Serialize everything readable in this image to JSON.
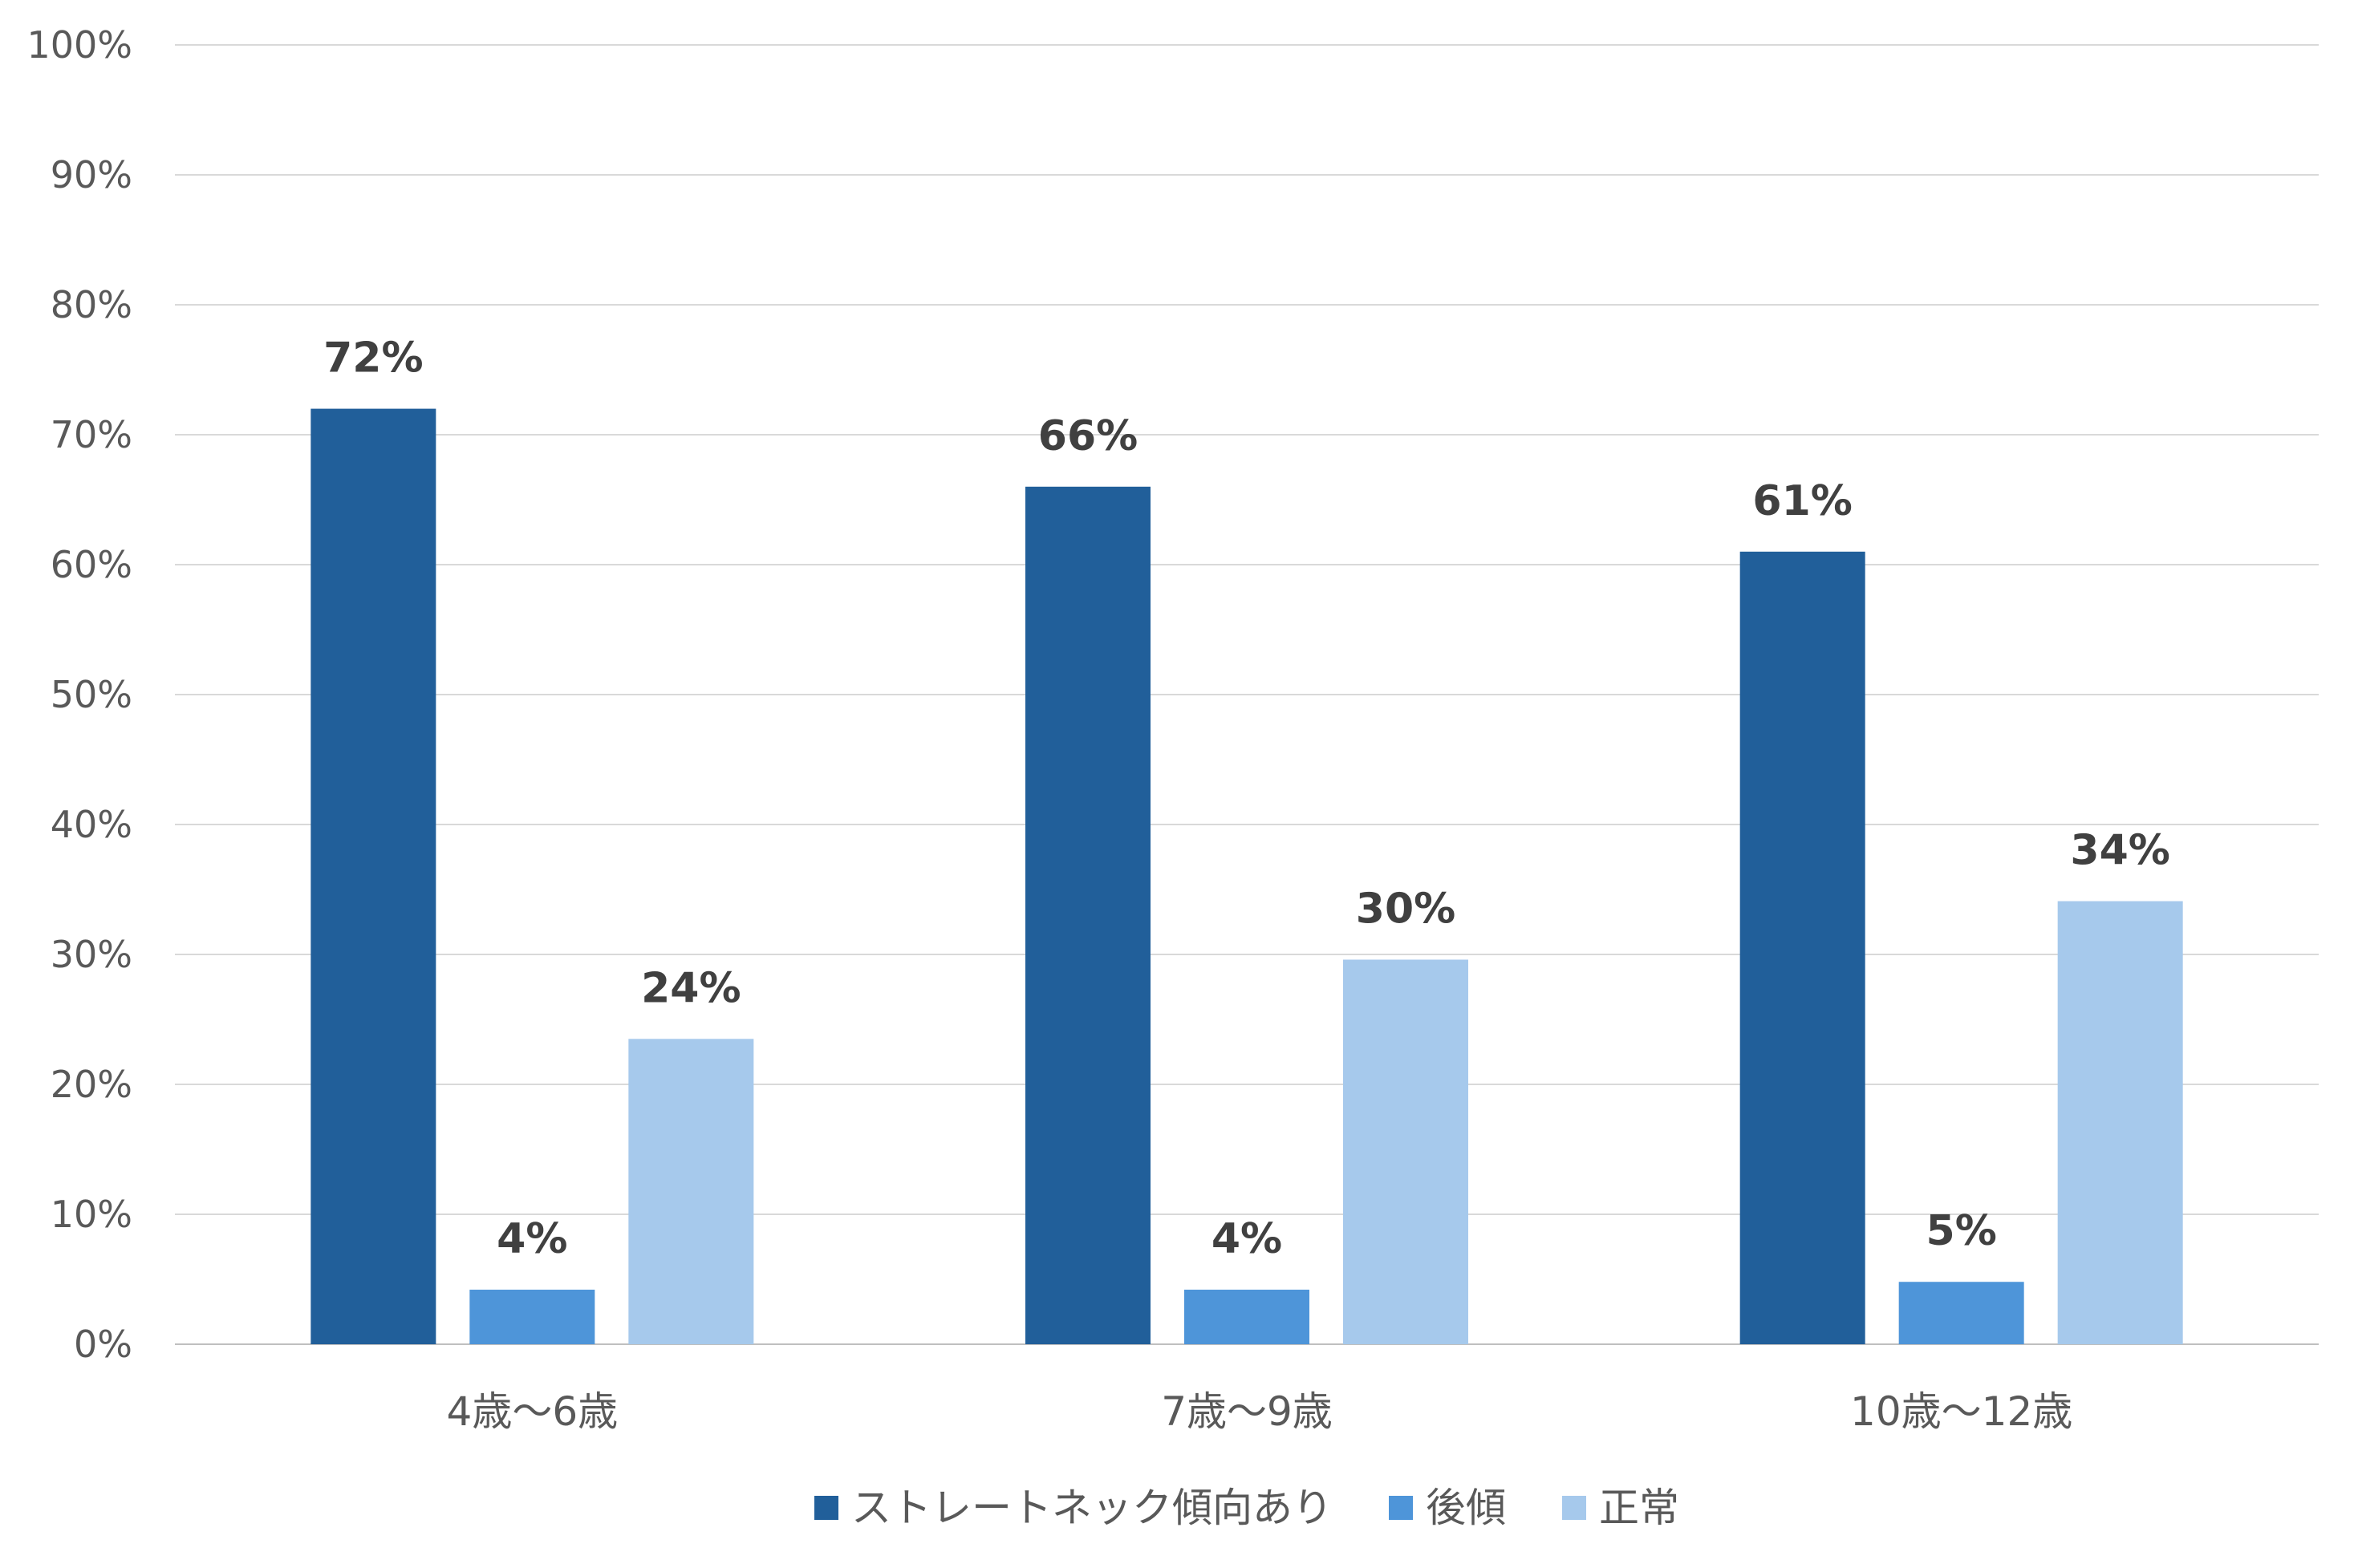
{
  "chart_data": {
    "type": "bar",
    "categories": [
      "4歳〜6歳",
      "7歳〜9歳",
      "10歳〜12歳"
    ],
    "series": [
      {
        "name": "ストレートネック傾向あり",
        "values": [
          72,
          66,
          61
        ],
        "labels": [
          "72%",
          "66%",
          "61%"
        ],
        "color": "#215F9A"
      },
      {
        "name": "後傾",
        "values": [
          4.2,
          4.2,
          4.8
        ],
        "labels": [
          "4%",
          "4%",
          "5%"
        ],
        "color": "#4E95D9"
      },
      {
        "name": "正常",
        "values": [
          23.5,
          29.6,
          34.1
        ],
        "labels": [
          "24%",
          "30%",
          "34%"
        ],
        "color": "#A6C9EC"
      }
    ],
    "y_ticks": [
      "0%",
      "10%",
      "20%",
      "30%",
      "40%",
      "50%",
      "60%",
      "70%",
      "80%",
      "90%",
      "100%"
    ],
    "ylim": [
      0,
      100
    ],
    "grid": true,
    "legend_position": "bottom",
    "title": "",
    "xlabel": "",
    "ylabel": ""
  }
}
